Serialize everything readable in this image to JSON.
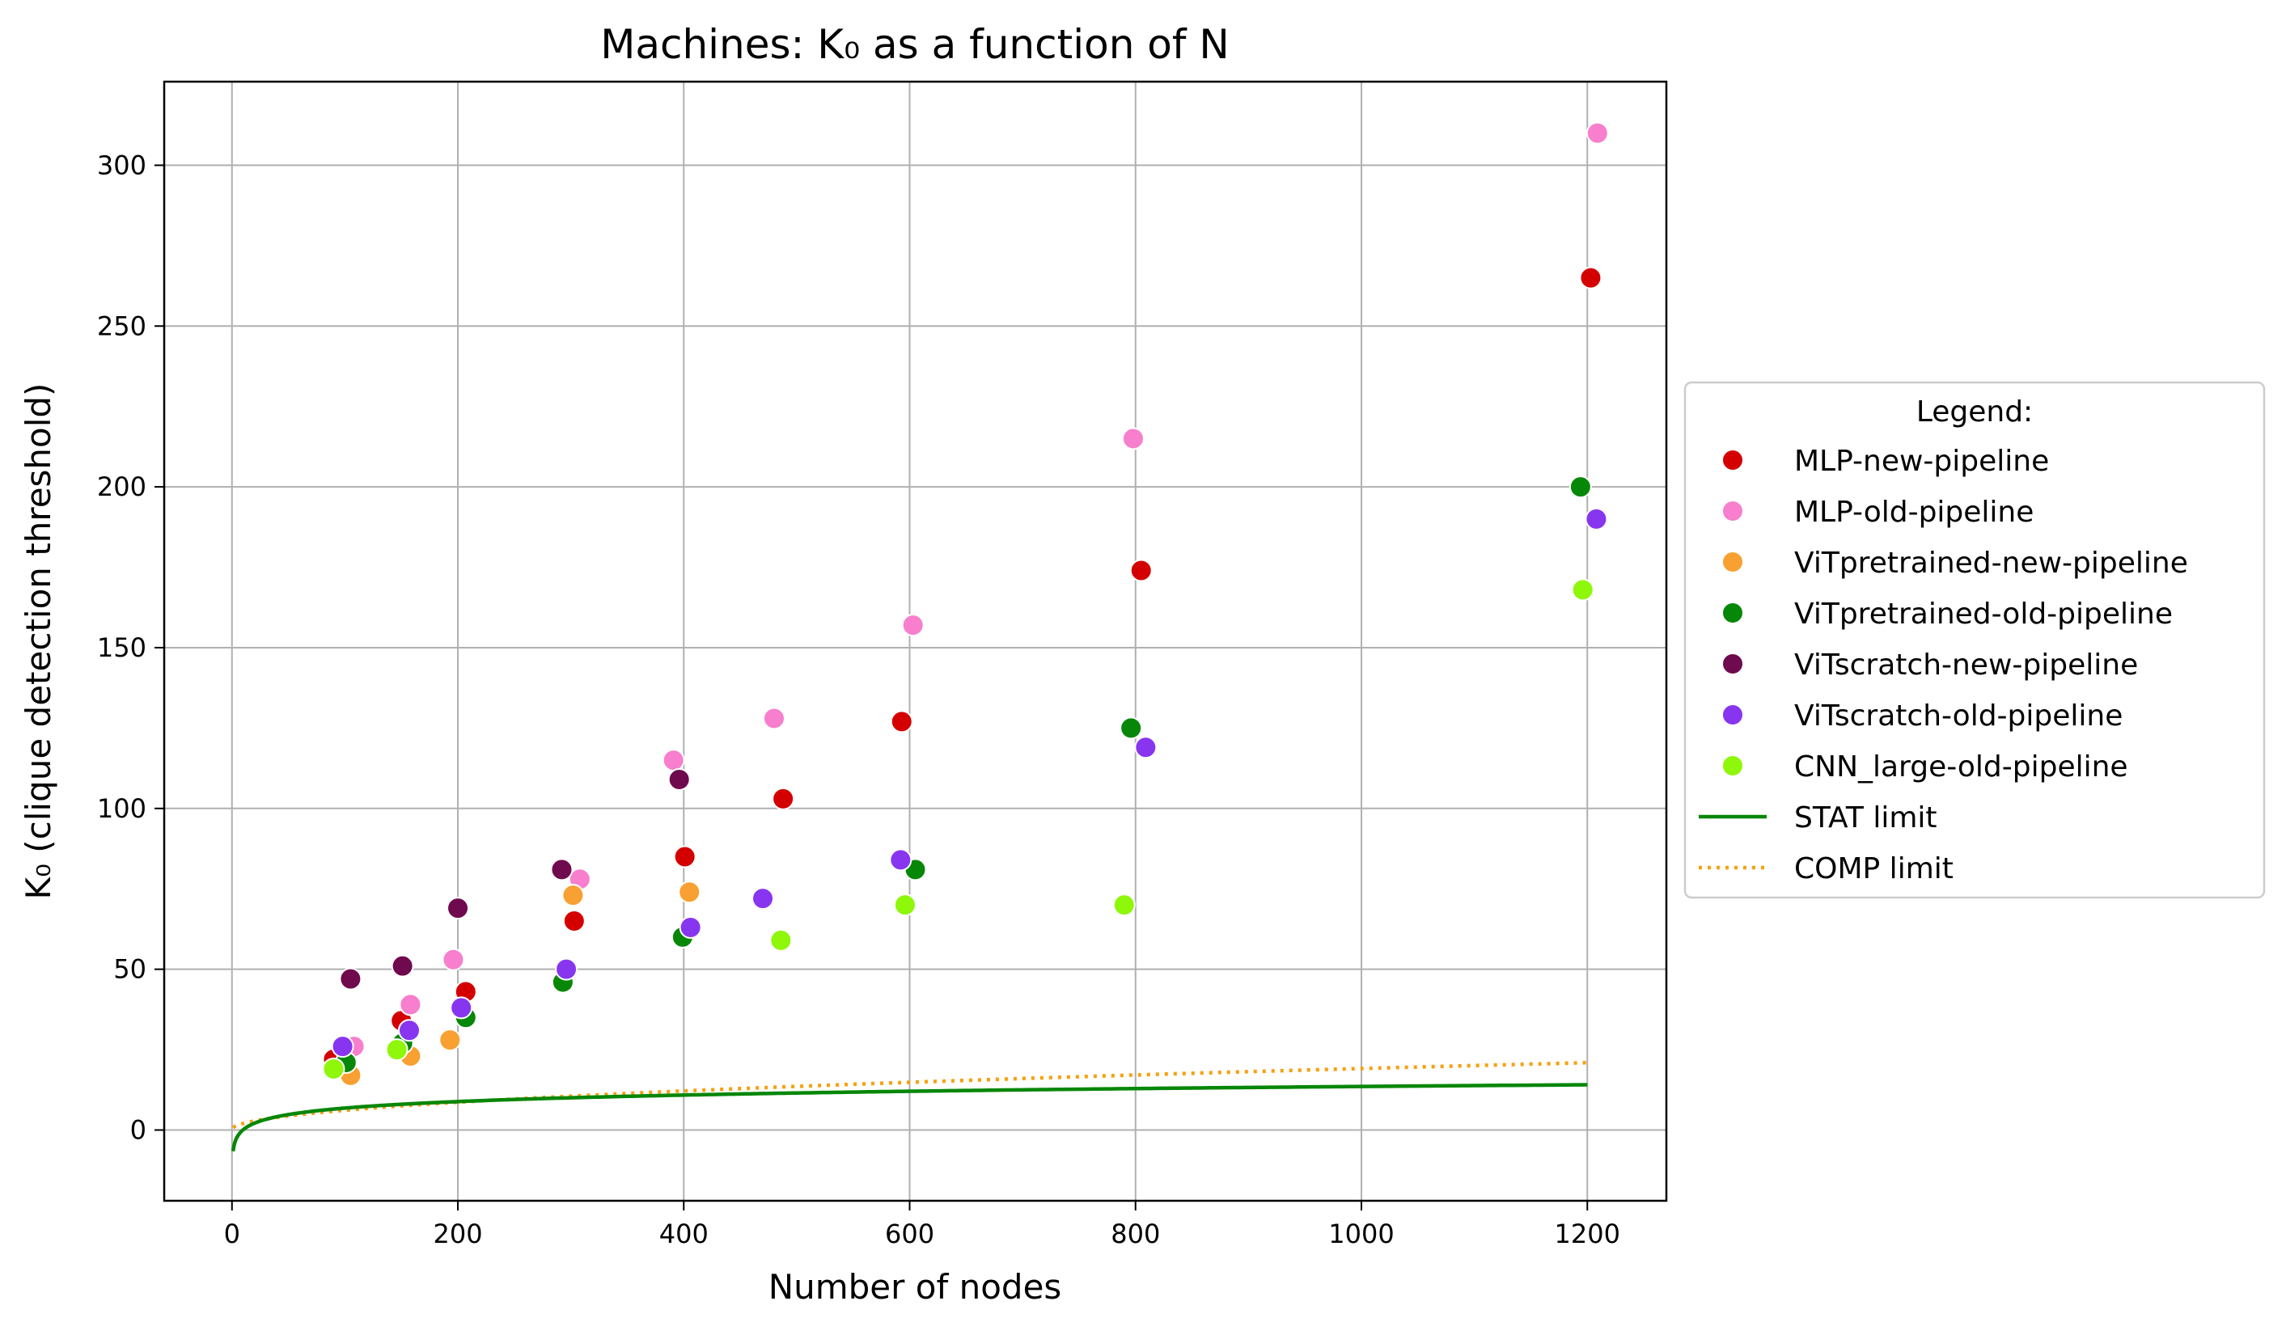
{
  "chart_data": {
    "type": "scatter",
    "title": "Machines: K₀ as a function of N",
    "xlabel": "Number of nodes",
    "ylabel": "K₀ (clique detection threshold)",
    "xlim": [
      -60,
      1270
    ],
    "ylim": [
      -22,
      326
    ],
    "xticks": [
      0,
      200,
      400,
      600,
      800,
      1000,
      1200
    ],
    "yticks": [
      0,
      50,
      100,
      150,
      200,
      250,
      300
    ],
    "grid": true,
    "legend": {
      "title": "Legend:",
      "placement": "outside-right"
    },
    "series": [
      {
        "name": "MLP-new-pipeline",
        "color": "#d40000",
        "marker": "circle",
        "points": [
          [
            90,
            22
          ],
          [
            150,
            34
          ],
          [
            207,
            43
          ],
          [
            303,
            65
          ],
          [
            401,
            85
          ],
          [
            488,
            103
          ],
          [
            593,
            127
          ],
          [
            805,
            174
          ],
          [
            1203,
            265
          ]
        ]
      },
      {
        "name": "MLP-old-pipeline",
        "color": "#f77fcd",
        "marker": "circle",
        "points": [
          [
            108,
            26
          ],
          [
            158,
            39
          ],
          [
            196,
            53
          ],
          [
            308,
            78
          ],
          [
            391,
            115
          ],
          [
            480,
            128
          ],
          [
            603,
            157
          ],
          [
            798,
            215
          ],
          [
            1209,
            310
          ]
        ]
      },
      {
        "name": "ViTpretrained-new-pipeline",
        "color": "#f8a031",
        "marker": "circle",
        "points": [
          [
            105,
            17
          ],
          [
            158,
            23
          ],
          [
            193,
            28
          ],
          [
            302,
            73
          ],
          [
            405,
            74
          ]
        ]
      },
      {
        "name": "ViTpretrained-old-pipeline",
        "color": "#078707",
        "marker": "circle",
        "points": [
          [
            101,
            21
          ],
          [
            151,
            27
          ],
          [
            207,
            35
          ],
          [
            293,
            46
          ],
          [
            399,
            60
          ],
          [
            471,
            72
          ],
          [
            605,
            81
          ],
          [
            796,
            125
          ],
          [
            1194,
            200
          ]
        ]
      },
      {
        "name": "ViTscratch-new-pipeline",
        "color": "#6f0a4e",
        "marker": "circle",
        "points": [
          [
            105,
            47
          ],
          [
            151,
            51
          ],
          [
            200,
            69
          ],
          [
            292,
            81
          ],
          [
            396,
            109
          ]
        ]
      },
      {
        "name": "ViTscratch-old-pipeline",
        "color": "#8835f0",
        "marker": "circle",
        "points": [
          [
            98,
            26
          ],
          [
            157,
            31
          ],
          [
            203,
            38
          ],
          [
            296,
            50
          ],
          [
            406,
            63
          ],
          [
            470,
            72
          ],
          [
            592,
            84
          ],
          [
            809,
            119
          ],
          [
            1208,
            190
          ]
        ]
      },
      {
        "name": "CNN_large-old-pipeline",
        "color": "#8ef70a",
        "marker": "circle",
        "points": [
          [
            90,
            19
          ],
          [
            146,
            25
          ],
          [
            486,
            59
          ],
          [
            596,
            70
          ],
          [
            790,
            70
          ],
          [
            1196,
            168
          ]
        ]
      }
    ],
    "lines": [
      {
        "name": "STAT limit",
        "color": "#078707",
        "style": "solid"
      },
      {
        "name": "COMP limit",
        "color": "#f8a010",
        "style": "dotted"
      }
    ]
  }
}
